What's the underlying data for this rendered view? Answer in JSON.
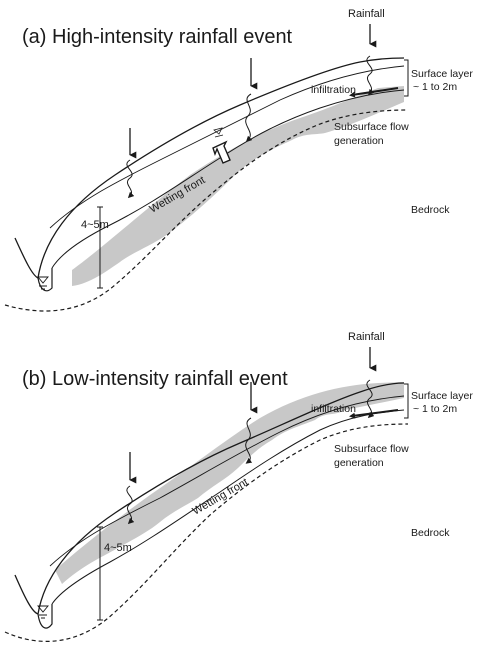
{
  "panels": [
    {
      "id": "a",
      "title": "(a) High-intensity rainfall event",
      "rainfall": "Rainfall",
      "surface_layer": [
        "Surface layer",
        "~ 1 to 2m"
      ],
      "infiltration": "infiltration",
      "subsurface": [
        "Subsurface flow",
        "generation"
      ],
      "wetting_front": "Wetting front",
      "depth": "4~5m",
      "bedrock": "Bedrock"
    },
    {
      "id": "b",
      "title": "(b) Low-intensity rainfall event",
      "rainfall": "Rainfall",
      "surface_layer": [
        "Surface layer",
        "~ 1 to 2m"
      ],
      "infiltration": "infiltration",
      "subsurface": [
        "Subsurface flow",
        "generation"
      ],
      "wetting_front": "Wetting front",
      "depth": "4~5m",
      "bedrock": "Bedrock"
    }
  ],
  "colors": {
    "soil_fill": "#c8c8c8",
    "line": "#1a1a1a",
    "background": "#ffffff"
  }
}
